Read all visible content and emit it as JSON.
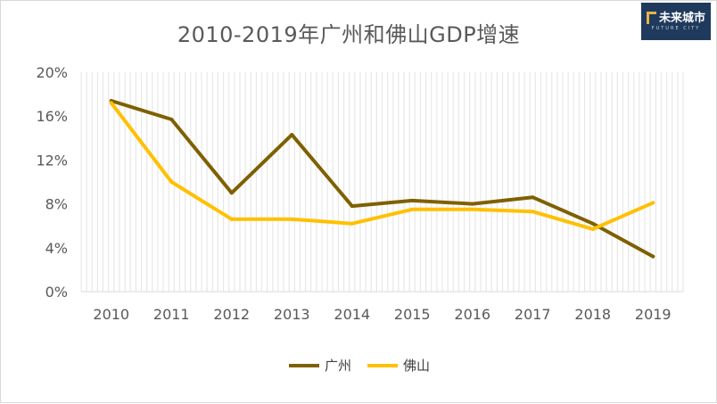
{
  "title": "2010-2019年广州和佛山GDP增速",
  "logo": {
    "text": "未来城市",
    "subtext": "FUTURE CITY"
  },
  "chart_data": {
    "type": "line",
    "title": "2010-2019年广州和佛山GDP增速",
    "categories": [
      "2010",
      "2011",
      "2012",
      "2013",
      "2014",
      "2015",
      "2016",
      "2017",
      "2018",
      "2019"
    ],
    "series": [
      {
        "name": "广州",
        "color": "#7f6000",
        "values": [
          17.4,
          15.7,
          9.0,
          14.3,
          7.8,
          8.3,
          8.0,
          8.6,
          6.2,
          3.2
        ]
      },
      {
        "name": "佛山",
        "color": "#ffc000",
        "values": [
          17.2,
          10.0,
          6.6,
          6.6,
          6.2,
          7.5,
          7.5,
          7.3,
          5.7,
          8.1
        ]
      }
    ],
    "y_ticks": [
      "0%",
      "4%",
      "8%",
      "12%",
      "16%",
      "20%"
    ],
    "ylim": [
      0,
      20
    ],
    "grid": "vertical",
    "legend_position": "bottom"
  }
}
